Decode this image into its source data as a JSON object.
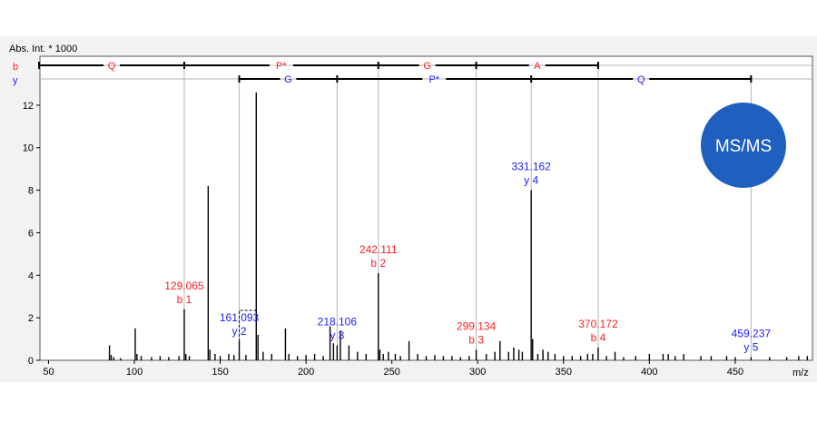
{
  "chart_data": {
    "type": "bar",
    "title": "",
    "ylabel": "Abs. Int. * 1000",
    "xlabel": "m/z",
    "xlim": [
      45,
      495
    ],
    "ylim": [
      0,
      14.3
    ],
    "x_ticks": [
      50,
      100,
      150,
      200,
      250,
      300,
      350,
      400,
      450
    ],
    "y_ticks": [
      0,
      2,
      4,
      6,
      8,
      10,
      12
    ],
    "colors": {
      "b_ion": "#ff2020",
      "y_ion": "#2020ff",
      "peak": "#000000",
      "guide": "#b4b4b4",
      "badge": "#1f5fbf",
      "background": "#f2f2f2"
    },
    "badge": {
      "label": "MS/MS"
    },
    "series_labels": {
      "b": "b",
      "y": "y"
    },
    "b_ladder": {
      "boundaries": [
        44.5,
        129.065,
        242.111,
        299.134,
        370.172
      ],
      "residues": [
        "Q",
        "P*",
        "G",
        "A"
      ]
    },
    "y_ladder": {
      "boundaries": [
        161.093,
        218.106,
        331.162,
        459.237
      ],
      "residues": [
        "G",
        "P*",
        "Q"
      ]
    },
    "annotated_peaks": [
      {
        "mz": 129.065,
        "intensity": 2.4,
        "label": "129.065",
        "ion": "b 1",
        "type": "b"
      },
      {
        "mz": 161.093,
        "intensity": 0.9,
        "label": "161.093",
        "ion": "y 2",
        "type": "y"
      },
      {
        "mz": 218.106,
        "intensity": 0.7,
        "label": "218.106",
        "ion": "y 3",
        "type": "y"
      },
      {
        "mz": 242.111,
        "intensity": 4.1,
        "label": "242.111",
        "ion": "b 2",
        "type": "b"
      },
      {
        "mz": 299.134,
        "intensity": 0.5,
        "label": "299.134",
        "ion": "b 3",
        "type": "b"
      },
      {
        "mz": 331.162,
        "intensity": 8.0,
        "label": "331.162",
        "ion": "y 4",
        "type": "y"
      },
      {
        "mz": 370.172,
        "intensity": 0.6,
        "label": "370.172",
        "ion": "b 4",
        "type": "b"
      },
      {
        "mz": 459.237,
        "intensity": 0.15,
        "label": "459.237",
        "ion": "y 5",
        "type": "y"
      }
    ],
    "peaks": [
      [
        85.5,
        0.7
      ],
      [
        86.5,
        0.25
      ],
      [
        88,
        0.15
      ],
      [
        92,
        0.1
      ],
      [
        100.5,
        1.5
      ],
      [
        101.5,
        0.3
      ],
      [
        104,
        0.2
      ],
      [
        110,
        0.15
      ],
      [
        115,
        0.2
      ],
      [
        120,
        0.15
      ],
      [
        126,
        0.2
      ],
      [
        129.06,
        2.4
      ],
      [
        130,
        0.3
      ],
      [
        132,
        0.2
      ],
      [
        143,
        8.2
      ],
      [
        144,
        0.5
      ],
      [
        147,
        0.3
      ],
      [
        150,
        0.2
      ],
      [
        155,
        0.3
      ],
      [
        158,
        0.25
      ],
      [
        161.09,
        0.9
      ],
      [
        165,
        0.25
      ],
      [
        171,
        12.6
      ],
      [
        172,
        1.2
      ],
      [
        175,
        0.4
      ],
      [
        180,
        0.3
      ],
      [
        188,
        1.5
      ],
      [
        190,
        0.3
      ],
      [
        195,
        0.2
      ],
      [
        200,
        0.25
      ],
      [
        205,
        0.3
      ],
      [
        210,
        0.2
      ],
      [
        214,
        1.6
      ],
      [
        216,
        0.8
      ],
      [
        218.11,
        0.7
      ],
      [
        220,
        1.4
      ],
      [
        225,
        0.7
      ],
      [
        230,
        0.4
      ],
      [
        235,
        0.3
      ],
      [
        242.11,
        4.1
      ],
      [
        243,
        0.5
      ],
      [
        245,
        0.3
      ],
      [
        248,
        0.4
      ],
      [
        252,
        0.3
      ],
      [
        255,
        0.2
      ],
      [
        260,
        0.9
      ],
      [
        265,
        0.3
      ],
      [
        270,
        0.2
      ],
      [
        275,
        0.25
      ],
      [
        280,
        0.2
      ],
      [
        285,
        0.2
      ],
      [
        290,
        0.15
      ],
      [
        295,
        0.2
      ],
      [
        299.13,
        0.5
      ],
      [
        305,
        0.3
      ],
      [
        310,
        0.4
      ],
      [
        313,
        0.9
      ],
      [
        318,
        0.4
      ],
      [
        321,
        0.6
      ],
      [
        324,
        0.5
      ],
      [
        326,
        0.4
      ],
      [
        331.16,
        8.0
      ],
      [
        332,
        1.0
      ],
      [
        335,
        0.3
      ],
      [
        338,
        0.5
      ],
      [
        341,
        0.4
      ],
      [
        345,
        0.3
      ],
      [
        350,
        0.2
      ],
      [
        355,
        0.2
      ],
      [
        360,
        0.2
      ],
      [
        364,
        0.3
      ],
      [
        367,
        0.3
      ],
      [
        370.17,
        0.6
      ],
      [
        375,
        0.2
      ],
      [
        380,
        0.4
      ],
      [
        385,
        0.15
      ],
      [
        392,
        0.2
      ],
      [
        400,
        0.3
      ],
      [
        408,
        0.3
      ],
      [
        411,
        0.3
      ],
      [
        415,
        0.2
      ],
      [
        420,
        0.3
      ],
      [
        430,
        0.2
      ],
      [
        436,
        0.2
      ],
      [
        445,
        0.2
      ],
      [
        450,
        0.15
      ],
      [
        459.24,
        0.15
      ],
      [
        470,
        0.15
      ],
      [
        480,
        0.15
      ],
      [
        487,
        0.2
      ],
      [
        492,
        0.2
      ]
    ]
  }
}
